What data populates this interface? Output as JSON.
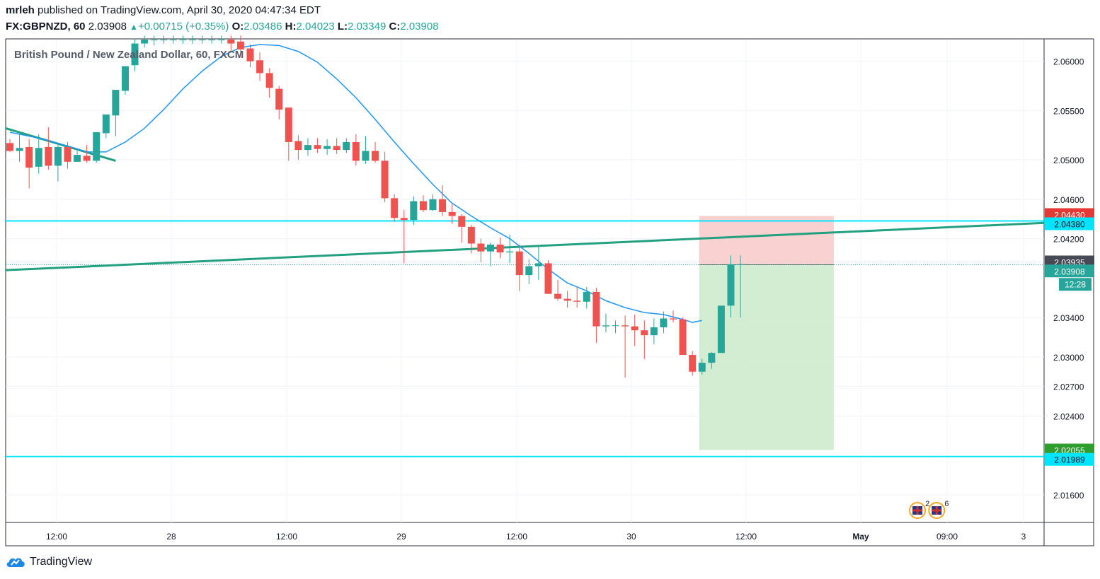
{
  "header": {
    "author": "mrleh",
    "published_text": "published on TradingView.com, April 30, 2020 04:47:34 EDT",
    "symbol": "FX:GBPNZD, 60",
    "price": "2.03908",
    "change": "+0.00715 (+0.35%)",
    "o_label": "O:",
    "o": "2.03486",
    "h_label": "H:",
    "h": "2.04023",
    "l_label": "L:",
    "l": "2.03349",
    "c_label": "C:",
    "c": "2.03908"
  },
  "footer": {
    "brand": "TradingView"
  },
  "colors": {
    "up": "#26a69a",
    "down": "#ef5350",
    "ma": "#2196f3",
    "trendline": "#22a07f",
    "hline": "#00e5ff",
    "grid": "#f0f3fa",
    "stop_zone": "#f8c5c5",
    "target_zone": "#cdebcc"
  },
  "chart_data": {
    "type": "candlestick",
    "title": "British Pound / New Zealand Dollar, 60, FXCM",
    "x_tick_labels": [
      "12:00",
      "28",
      "12:00",
      "29",
      "12:00",
      "30",
      "12:00",
      "May",
      "09:00",
      "3"
    ],
    "y_tick_labels": [
      "2.06000",
      "2.05500",
      "2.05000",
      "2.04600",
      "2.04200",
      "2.03400",
      "2.03000",
      "2.02700",
      "2.02400",
      "2.01600"
    ],
    "ylim": [
      2.0132,
      2.0622
    ],
    "price_labels": [
      {
        "value": 2.0443,
        "text": "2.04430",
        "role": "stop-loss"
      },
      {
        "value": 2.0438,
        "text": "2.04380",
        "role": "resistance-line"
      },
      {
        "value": 2.03935,
        "text": "2.03935",
        "role": "entry"
      },
      {
        "value": 2.03908,
        "text": "2.03908",
        "role": "last-price"
      },
      {
        "value": 2.02055,
        "text": "2.02055",
        "role": "take-profit"
      },
      {
        "value": 2.01989,
        "text": "2.01989",
        "role": "support-line"
      }
    ],
    "countdown": "12:28",
    "horizontal_lines": [
      2.0438,
      2.01989
    ],
    "trendlines": [
      {
        "from": [
          0,
          2.0532
        ],
        "to": [
          11,
          2.0499
        ]
      },
      {
        "from": [
          0,
          2.0388
        ],
        "to": [
          111,
          2.0436
        ]
      }
    ],
    "position_short": {
      "start_index": 72,
      "end_index": 86,
      "entry": 2.03935,
      "stop": 2.0443,
      "target": 2.02055
    },
    "events": [
      {
        "index": 95,
        "count": "2"
      },
      {
        "index": 97,
        "count": "6"
      }
    ],
    "candles": [
      [
        2.0517,
        2.0521,
        2.0509,
        2.0508
      ],
      [
        2.0509,
        2.0526,
        2.0512,
        2.0498
      ],
      [
        2.0513,
        2.0521,
        2.0492,
        2.0471
      ],
      [
        2.0493,
        2.0526,
        2.0512,
        2.0486
      ],
      [
        2.0513,
        2.0533,
        2.0494,
        2.049
      ],
      [
        2.0494,
        2.0515,
        2.0513,
        2.0478
      ],
      [
        2.0513,
        2.0518,
        2.0498,
        2.0491
      ],
      [
        2.0498,
        2.0509,
        2.0505,
        2.0498
      ],
      [
        2.0504,
        2.0515,
        2.0499,
        2.0497
      ],
      [
        2.0499,
        2.0516,
        2.0528,
        2.0497
      ],
      [
        2.0527,
        2.0538,
        2.0546,
        2.0522
      ],
      [
        2.0545,
        2.0566,
        2.0571,
        2.0524
      ],
      [
        2.057,
        2.059,
        2.0595,
        2.0566
      ],
      [
        2.0596,
        2.0623,
        2.0618,
        2.059
      ],
      [
        2.0618,
        2.0626,
        2.0622,
        2.0614
      ],
      [
        2.0622,
        2.0626,
        2.0622,
        2.0616
      ],
      [
        2.0622,
        2.0626,
        2.0622,
        2.0618
      ],
      [
        2.0622,
        2.0626,
        2.0622,
        2.0618
      ],
      [
        2.0622,
        2.0626,
        2.0622,
        2.0618
      ],
      [
        2.0622,
        2.0626,
        2.0622,
        2.0618
      ],
      [
        2.0622,
        2.0626,
        2.0622,
        2.0618
      ],
      [
        2.0622,
        2.0626,
        2.0622,
        2.0618
      ],
      [
        2.0622,
        2.0626,
        2.0622,
        2.0618
      ],
      [
        2.0622,
        2.0626,
        2.0618,
        2.061
      ],
      [
        2.062,
        2.0626,
        2.0612,
        2.0604
      ],
      [
        2.0613,
        2.0617,
        2.06,
        2.0594
      ],
      [
        2.0601,
        2.0609,
        2.0588,
        2.058
      ],
      [
        2.0588,
        2.0593,
        2.0573,
        2.0563
      ],
      [
        2.0572,
        2.0575,
        2.0551,
        2.0541
      ],
      [
        2.0553,
        2.0553,
        2.0518,
        2.0499
      ],
      [
        2.0519,
        2.0525,
        2.051,
        2.05
      ],
      [
        2.051,
        2.0522,
        2.0515,
        2.0504
      ],
      [
        2.0515,
        2.0522,
        2.0511,
        2.0507
      ],
      [
        2.0511,
        2.0521,
        2.0514,
        2.0505
      ],
      [
        2.0514,
        2.0522,
        2.051,
        2.0506
      ],
      [
        2.051,
        2.0522,
        2.0518,
        2.0507
      ],
      [
        2.0518,
        2.0526,
        2.0499,
        2.0494
      ],
      [
        2.0499,
        2.0524,
        2.0509,
        2.0496
      ],
      [
        2.0509,
        2.0518,
        2.0499,
        2.0497
      ],
      [
        2.0499,
        2.0508,
        2.0461,
        2.0457
      ],
      [
        2.0461,
        2.0465,
        2.0441,
        2.0437
      ],
      [
        2.0441,
        2.0449,
        2.0439,
        2.0395
      ],
      [
        2.0439,
        2.0463,
        2.0458,
        2.0434
      ],
      [
        2.0458,
        2.0464,
        2.0449,
        2.0447
      ],
      [
        2.0449,
        2.0465,
        2.046,
        2.0448
      ],
      [
        2.046,
        2.0474,
        2.0447,
        2.0443
      ],
      [
        2.0447,
        2.0455,
        2.0443,
        2.0435
      ],
      [
        2.0443,
        2.0445,
        2.0432,
        2.0416
      ],
      [
        2.0432,
        2.0434,
        2.0415,
        2.0405
      ],
      [
        2.0415,
        2.042,
        2.0407,
        2.0396
      ],
      [
        2.0407,
        2.0416,
        2.0414,
        2.0392
      ],
      [
        2.0414,
        2.0421,
        2.0406,
        2.04
      ],
      [
        2.0406,
        2.0424,
        2.0407,
        2.0395
      ],
      [
        2.0407,
        2.0414,
        2.0383,
        2.0367
      ],
      [
        2.0383,
        2.0399,
        2.0392,
        2.0374
      ],
      [
        2.0392,
        2.0413,
        2.0395,
        2.0378
      ],
      [
        2.0395,
        2.0398,
        2.0364,
        2.0364
      ],
      [
        2.0364,
        2.0378,
        2.0359,
        2.0357
      ],
      [
        2.0359,
        2.0367,
        2.0357,
        2.035
      ],
      [
        2.0357,
        2.0371,
        2.0356,
        2.035
      ],
      [
        2.0356,
        2.0371,
        2.0366,
        2.0349
      ],
      [
        2.0366,
        2.037,
        2.0331,
        2.0314
      ],
      [
        2.0331,
        2.0344,
        2.0332,
        2.0325
      ],
      [
        2.0332,
        2.0337,
        2.0332,
        2.0324
      ],
      [
        2.0332,
        2.0342,
        2.0331,
        2.0279
      ],
      [
        2.0331,
        2.0343,
        2.0327,
        2.0311
      ],
      [
        2.0327,
        2.0337,
        2.0322,
        2.0298
      ],
      [
        2.0322,
        2.0339,
        2.033,
        2.0313
      ],
      [
        2.033,
        2.0346,
        2.0339,
        2.0324
      ],
      [
        2.0339,
        2.0347,
        2.0338,
        2.0335
      ],
      [
        2.0338,
        2.034,
        2.0302,
        2.0302
      ],
      [
        2.0302,
        2.0306,
        2.0285,
        2.0281
      ],
      [
        2.0285,
        2.0298,
        2.0294,
        2.0282
      ],
      [
        2.0294,
        2.0305,
        2.0304,
        2.0288
      ],
      [
        2.0304,
        2.0352,
        2.0352,
        2.0304
      ],
      [
        2.0352,
        2.0403,
        2.0394,
        2.034
      ],
      [
        2.0394,
        2.0403,
        2.0394,
        2.034
      ]
    ],
    "ma_points": [
      [
        0,
        2.0528
      ],
      [
        3,
        2.0522
      ],
      [
        6,
        2.0514
      ],
      [
        8,
        2.0508
      ],
      [
        10,
        2.0508
      ],
      [
        12,
        2.0518
      ],
      [
        14,
        2.0532
      ],
      [
        16,
        2.0551
      ],
      [
        18,
        2.0572
      ],
      [
        20,
        2.059
      ],
      [
        22,
        2.0605
      ],
      [
        24,
        2.0614
      ],
      [
        26,
        2.0617
      ],
      [
        28,
        2.0616
      ],
      [
        30,
        2.061
      ],
      [
        32,
        2.0599
      ],
      [
        34,
        2.0582
      ],
      [
        36,
        2.0563
      ],
      [
        38,
        2.0541
      ],
      [
        40,
        2.0518
      ],
      [
        42,
        2.0496
      ],
      [
        44,
        2.0475
      ],
      [
        46,
        2.0456
      ],
      [
        48,
        2.0443
      ],
      [
        50,
        2.0431
      ],
      [
        52,
        2.042
      ],
      [
        54,
        2.0405
      ],
      [
        56,
        2.0389
      ],
      [
        58,
        2.0375
      ],
      [
        60,
        2.0367
      ],
      [
        62,
        2.0357
      ],
      [
        64,
        2.035
      ],
      [
        66,
        2.0345
      ],
      [
        68,
        2.0343
      ],
      [
        70,
        2.0338
      ],
      [
        71,
        2.0335
      ],
      [
        72,
        2.0337
      ]
    ]
  }
}
